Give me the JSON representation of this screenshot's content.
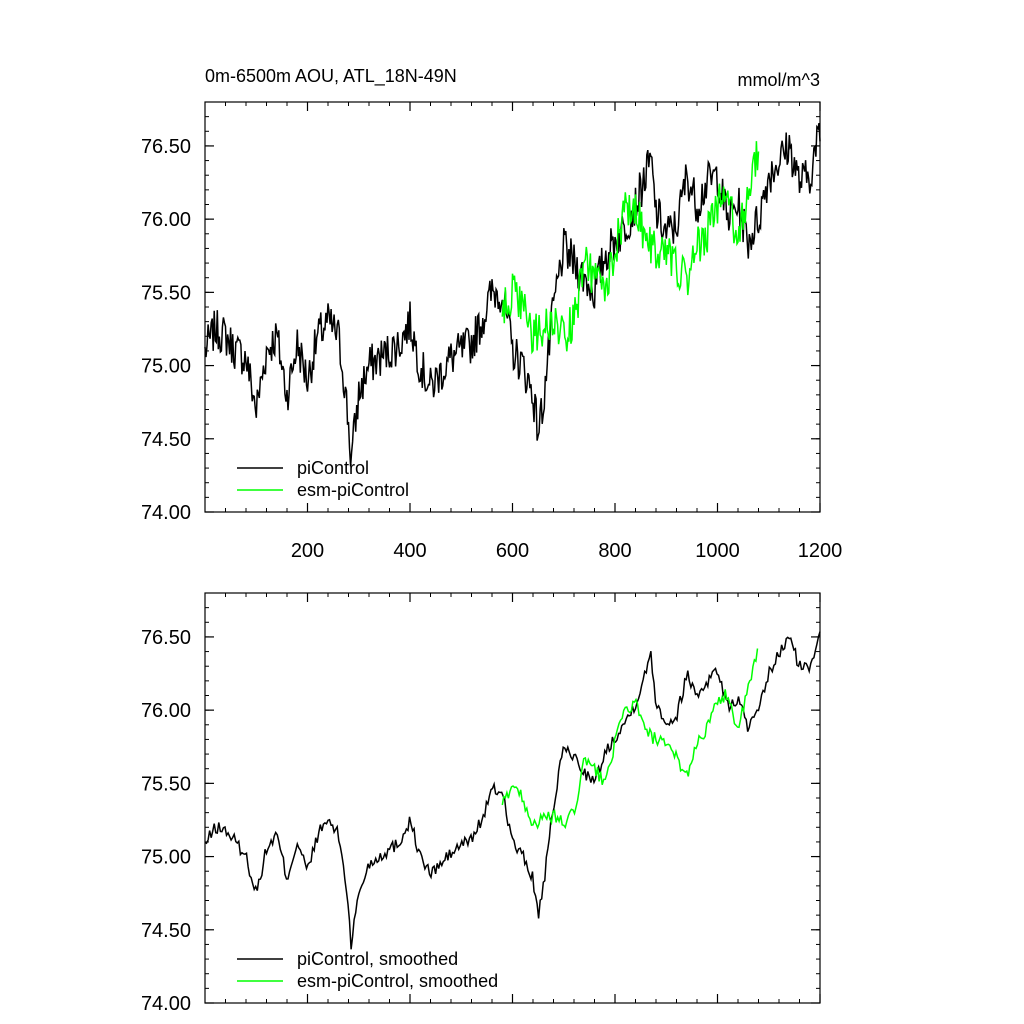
{
  "top_panel": {
    "title_left": "0m-6500m AOU, ATL_18N-49N",
    "title_right": "mmol/m^3"
  },
  "colors": {
    "piControl": "#000000",
    "esm-piControl": "#00ff00"
  },
  "chart_data": [
    {
      "type": "line",
      "title": "0m-6500m AOU, ATL_18N-49N",
      "units": "mmol/m^3",
      "xlim": [
        0,
        1200
      ],
      "ylim": [
        74.0,
        76.8
      ],
      "x_ticks": [
        200,
        400,
        600,
        800,
        1000,
        1200
      ],
      "y_ticks": [
        74.0,
        74.5,
        75.0,
        75.5,
        76.0,
        76.5
      ],
      "y_tick_labels": [
        "74.00",
        "74.50",
        "75.00",
        "75.50",
        "76.00",
        "76.50"
      ],
      "grid": false,
      "legend": "bottom-left",
      "series": [
        {
          "name": "piControl",
          "color": "#000000",
          "x": [
            0,
            20,
            40,
            60,
            80,
            100,
            120,
            140,
            160,
            180,
            200,
            220,
            240,
            260,
            270,
            280,
            285,
            300,
            320,
            340,
            360,
            380,
            400,
            420,
            440,
            460,
            480,
            500,
            520,
            540,
            560,
            580,
            600,
            620,
            640,
            650,
            660,
            680,
            700,
            720,
            740,
            760,
            780,
            800,
            820,
            840,
            860,
            870,
            880,
            900,
            920,
            940,
            960,
            980,
            1000,
            1020,
            1040,
            1060,
            1080,
            1100,
            1120,
            1140,
            1160,
            1180,
            1200
          ],
          "values": [
            75.1,
            75.25,
            75.2,
            75.1,
            75.05,
            74.7,
            75.1,
            75.2,
            74.8,
            75.15,
            74.9,
            75.2,
            75.3,
            75.2,
            74.95,
            74.6,
            74.35,
            74.8,
            75.0,
            75.05,
            75.1,
            75.15,
            75.3,
            75.0,
            74.85,
            74.95,
            75.05,
            75.1,
            75.15,
            75.3,
            75.5,
            75.5,
            75.1,
            75.0,
            74.8,
            74.55,
            74.75,
            75.4,
            75.8,
            75.7,
            75.6,
            75.5,
            75.75,
            75.85,
            75.95,
            76.1,
            76.3,
            76.4,
            76.05,
            75.9,
            75.95,
            76.3,
            76.1,
            76.25,
            76.3,
            76.0,
            76.1,
            75.85,
            76.0,
            76.3,
            76.4,
            76.5,
            76.25,
            76.3,
            76.6
          ]
        },
        {
          "name": "esm-piControl",
          "color": "#00ff00",
          "x": [
            580,
            600,
            620,
            640,
            660,
            680,
            700,
            720,
            740,
            760,
            780,
            800,
            820,
            840,
            860,
            880,
            900,
            920,
            940,
            960,
            980,
            1000,
            1020,
            1040,
            1060,
            1080
          ],
          "values": [
            75.35,
            75.5,
            75.4,
            75.2,
            75.25,
            75.3,
            75.2,
            75.3,
            75.7,
            75.6,
            75.5,
            75.8,
            76.05,
            76.1,
            75.85,
            75.8,
            75.75,
            75.7,
            75.55,
            75.8,
            75.9,
            76.1,
            76.15,
            75.85,
            76.2,
            76.45
          ]
        }
      ]
    },
    {
      "type": "line",
      "xlim": [
        0,
        1200
      ],
      "ylim": [
        74.0,
        76.8
      ],
      "y_ticks": [
        74.0,
        74.5,
        75.0,
        75.5,
        76.0,
        76.5
      ],
      "y_tick_labels": [
        "74.00",
        "74.50",
        "75.00",
        "75.50",
        "76.00",
        "76.50"
      ],
      "grid": false,
      "legend": "bottom-left",
      "series": [
        {
          "name": "piControl, smoothed",
          "color": "#000000",
          "x": [
            0,
            20,
            40,
            60,
            80,
            100,
            120,
            140,
            160,
            180,
            200,
            220,
            240,
            260,
            270,
            280,
            285,
            300,
            320,
            340,
            360,
            380,
            400,
            420,
            440,
            460,
            480,
            500,
            520,
            540,
            560,
            580,
            600,
            620,
            640,
            650,
            660,
            680,
            700,
            720,
            740,
            760,
            780,
            800,
            820,
            840,
            860,
            870,
            880,
            900,
            920,
            940,
            960,
            980,
            1000,
            1020,
            1040,
            1060,
            1080,
            1100,
            1120,
            1140,
            1160,
            1180,
            1200
          ],
          "values": [
            75.08,
            75.2,
            75.18,
            75.1,
            75.0,
            74.75,
            75.05,
            75.15,
            74.85,
            75.1,
            74.9,
            75.15,
            75.25,
            75.15,
            74.95,
            74.65,
            74.4,
            74.75,
            74.95,
            75.0,
            75.05,
            75.1,
            75.25,
            75.0,
            74.88,
            74.95,
            75.02,
            75.08,
            75.12,
            75.25,
            75.45,
            75.45,
            75.1,
            75.0,
            74.85,
            74.6,
            74.78,
            75.35,
            75.75,
            75.68,
            75.58,
            75.5,
            75.7,
            75.82,
            75.92,
            76.05,
            76.25,
            76.4,
            76.05,
            75.92,
            75.95,
            76.25,
            76.1,
            76.2,
            76.28,
            76.02,
            76.08,
            75.88,
            75.98,
            76.25,
            76.38,
            76.5,
            76.3,
            76.28,
            76.55
          ]
        },
        {
          "name": "esm-piControl, smoothed",
          "color": "#00ff00",
          "x": [
            580,
            600,
            620,
            640,
            660,
            680,
            700,
            720,
            740,
            760,
            780,
            800,
            820,
            840,
            860,
            880,
            900,
            920,
            940,
            960,
            980,
            1000,
            1020,
            1040,
            1060,
            1080
          ],
          "values": [
            75.35,
            75.5,
            75.4,
            75.22,
            75.25,
            75.28,
            75.22,
            75.3,
            75.65,
            75.6,
            75.5,
            75.78,
            76.0,
            76.05,
            75.85,
            75.8,
            75.75,
            75.68,
            75.55,
            75.78,
            75.88,
            76.05,
            76.12,
            75.85,
            76.15,
            76.42
          ]
        }
      ]
    }
  ]
}
